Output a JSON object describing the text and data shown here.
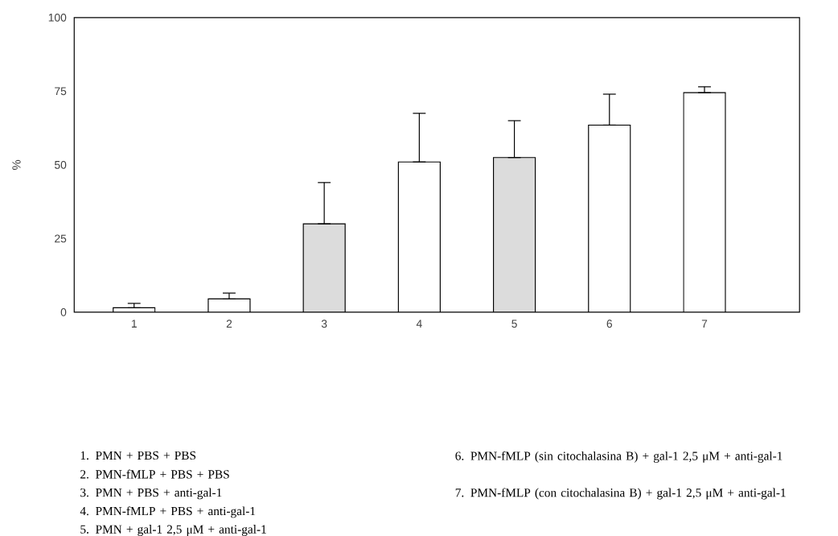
{
  "chart_data": {
    "type": "bar",
    "ylabel": "%",
    "categories": [
      "1",
      "2",
      "3",
      "4",
      "5",
      "6",
      "7"
    ],
    "values": [
      1.5,
      4.5,
      30,
      51,
      52.5,
      63.5,
      74.5
    ],
    "errors": [
      [
        1.5,
        3
      ],
      [
        4.5,
        6.5
      ],
      [
        30,
        44
      ],
      [
        51,
        67.5
      ],
      [
        52.5,
        65
      ],
      [
        63.5,
        74
      ],
      [
        74.5,
        76.5
      ]
    ],
    "colors": [
      "#ffffff",
      "#ffffff",
      "#dcdcdc",
      "#ffffff",
      "#dcdcdc",
      "#ffffff",
      "#ffffff"
    ],
    "ylim": [
      0,
      100
    ],
    "yticks": [
      0,
      25,
      50,
      75,
      100
    ],
    "annotations": [
      "1.  PMN + PBS + PBS",
      "2.  PMN-fMLP + PBS + PBS",
      "3.  PMN + PBS + anti-gal-1",
      "4.  PMN-fMLP + PBS + anti-gal-1",
      "5.  PMN + gal-1 2,5 μM + anti-gal-1",
      "6.  PMN-fMLP (sin citochalasina B) + gal-1 2,5 μM + anti-gal-1",
      "7.  PMN-fMLP (con citochalasina B) + gal-1 2,5 μM + anti-gal-1"
    ]
  }
}
